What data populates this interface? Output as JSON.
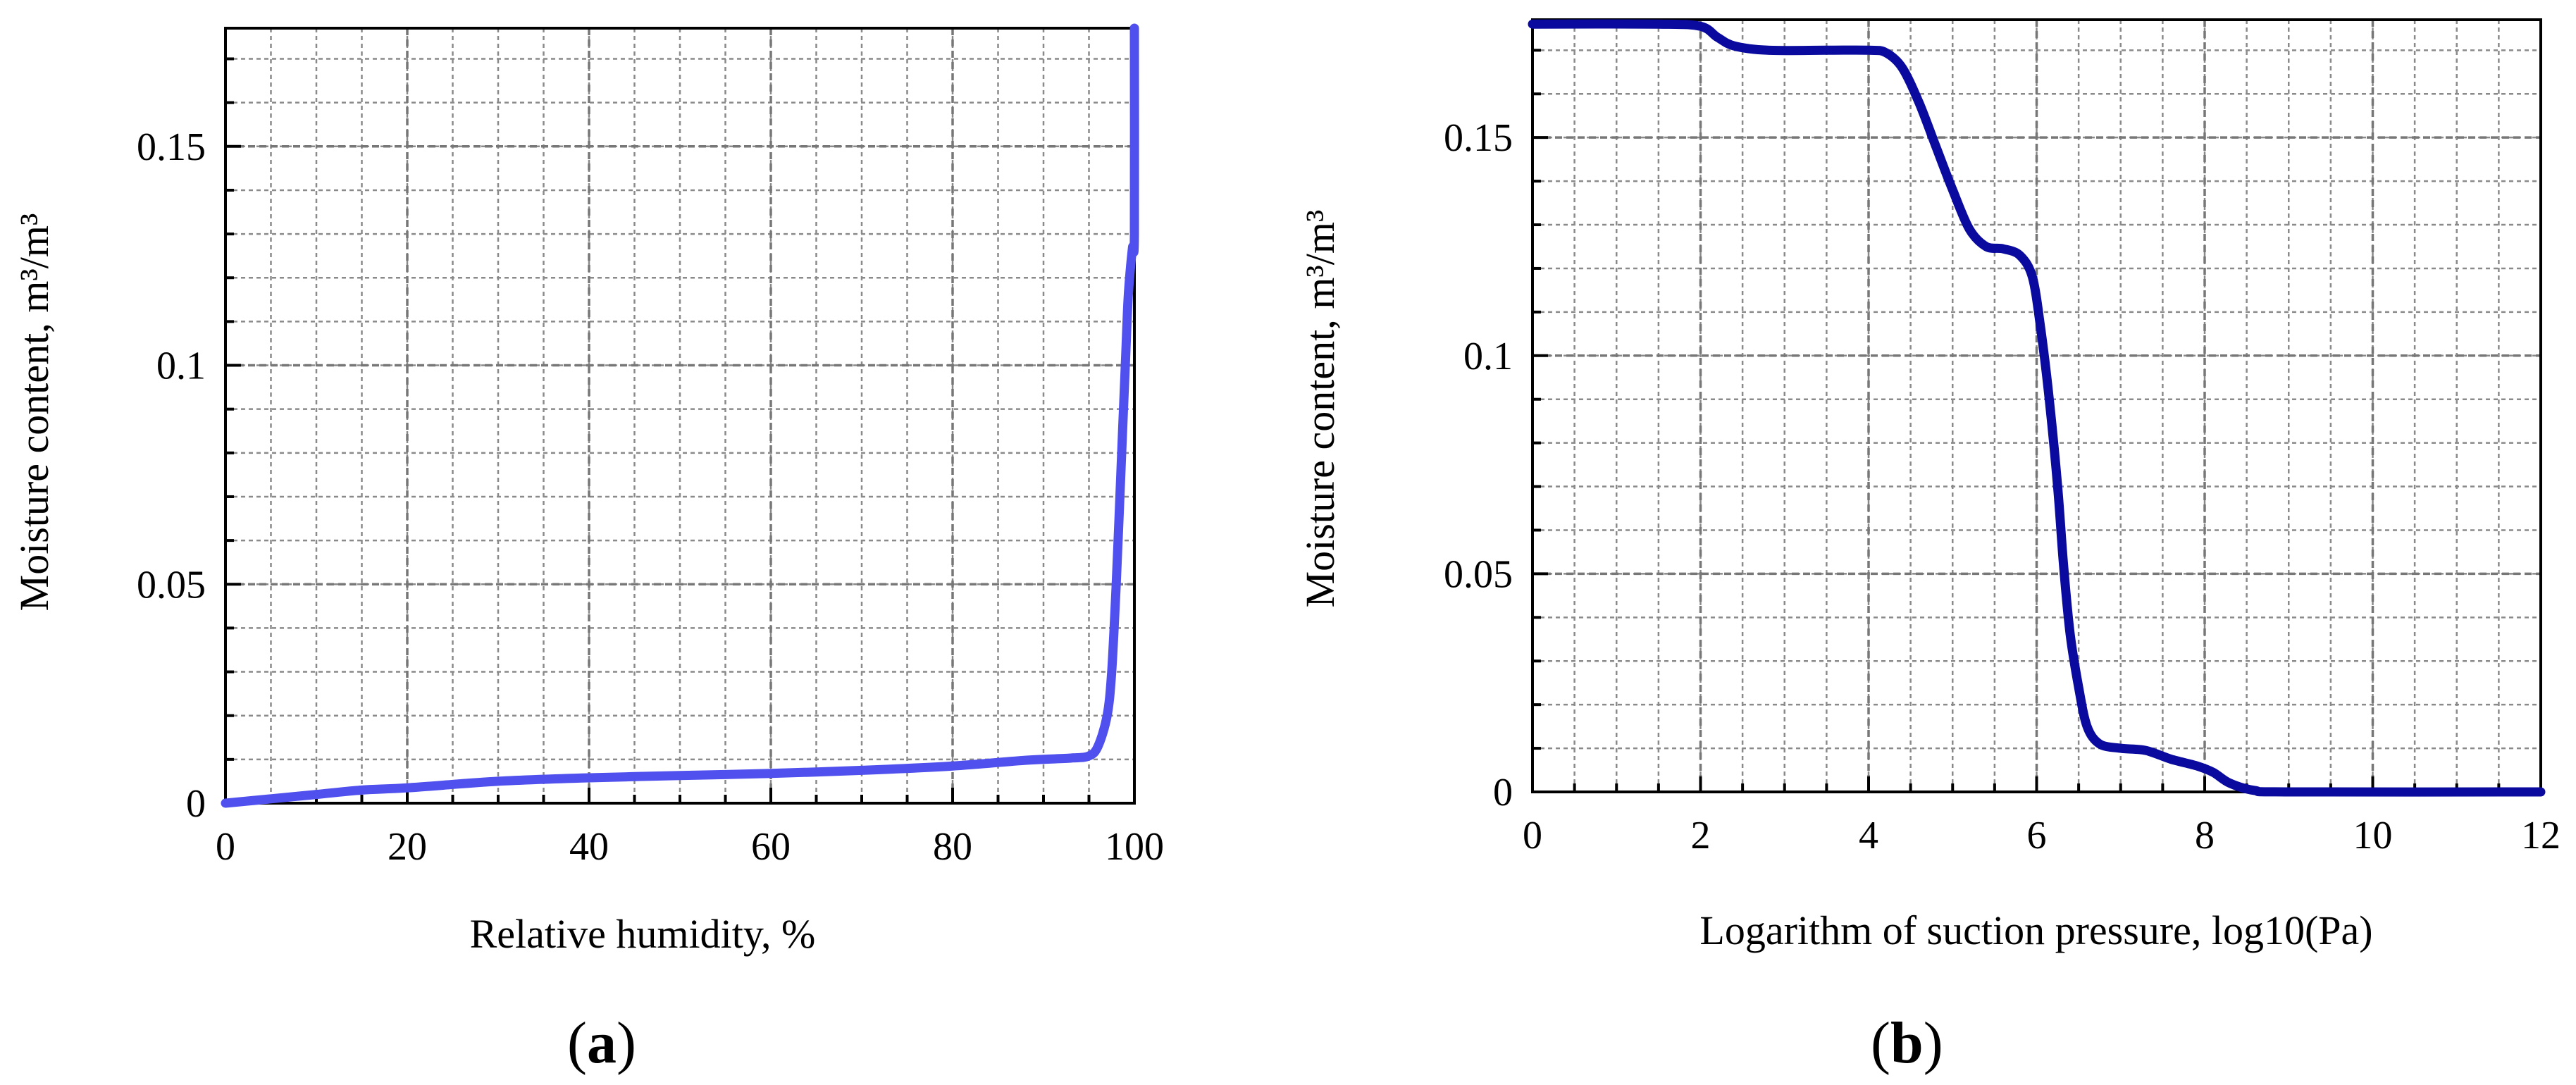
{
  "figure": {
    "colors": {
      "series_a": "#5050ee",
      "series_b": "#0a0a9e",
      "grid": "#8a8a8a",
      "axis": "#000000"
    }
  },
  "chart_data": [
    {
      "panel_label": "a",
      "type": "line",
      "xlabel": "Relative humidity, %",
      "ylabel": "Moisture content, m³/m³",
      "xlim": [
        0,
        100
      ],
      "ylim": [
        0,
        0.177
      ],
      "xticks": [
        0,
        20,
        40,
        60,
        80,
        100
      ],
      "yticks": [
        0,
        0.05,
        0.1,
        0.15
      ],
      "xtick_labels": [
        "0",
        "20",
        "40",
        "60",
        "80",
        "100"
      ],
      "ytick_labels": [
        "0",
        "0.05",
        "0.1",
        "0.15"
      ],
      "grid": true,
      "series": [
        {
          "color": "#5050ee",
          "x": [
            0,
            5,
            10,
            15,
            20,
            30,
            40,
            50,
            60,
            70,
            80,
            88,
            93,
            95,
            96,
            97,
            97.5,
            98,
            98.5,
            99,
            99.3,
            99.6,
            99.8,
            100,
            100
          ],
          "y": [
            0,
            0.001,
            0.002,
            0.003,
            0.0035,
            0.005,
            0.0058,
            0.0063,
            0.0068,
            0.0075,
            0.0085,
            0.0098,
            0.0103,
            0.0108,
            0.013,
            0.02,
            0.03,
            0.05,
            0.075,
            0.1,
            0.115,
            0.123,
            0.127,
            0.13,
            0.177
          ]
        }
      ]
    },
    {
      "panel_label": "b",
      "type": "line",
      "xlabel": "Logarithm of suction pressure, log10(Pa)",
      "ylabel": "Moisture content, m³/m³",
      "xlim": [
        0,
        12
      ],
      "ylim": [
        0,
        0.177
      ],
      "xticks": [
        0,
        2,
        4,
        6,
        8,
        10,
        12
      ],
      "yticks": [
        0,
        0.05,
        0.1,
        0.15
      ],
      "xtick_labels": [
        "0",
        "2",
        "4",
        "6",
        "8",
        "10",
        "12"
      ],
      "ytick_labels": [
        "0",
        "0.05",
        "0.1",
        "0.15"
      ],
      "grid": true,
      "series": [
        {
          "color": "#0a0a9e",
          "x": [
            0,
            1.5,
            2.0,
            2.2,
            2.4,
            2.8,
            3.5,
            4.0,
            4.2,
            4.4,
            4.6,
            4.8,
            5.0,
            5.2,
            5.4,
            5.6,
            5.8,
            5.95,
            6.05,
            6.15,
            6.25,
            6.32,
            6.4,
            6.5,
            6.6,
            6.75,
            7.0,
            7.3,
            7.6,
            7.9,
            8.1,
            8.3,
            8.6,
            9.0,
            12
          ],
          "y": [
            0.176,
            0.176,
            0.1755,
            0.173,
            0.171,
            0.17,
            0.17,
            0.17,
            0.1695,
            0.166,
            0.158,
            0.148,
            0.138,
            0.129,
            0.125,
            0.1245,
            0.123,
            0.118,
            0.106,
            0.09,
            0.07,
            0.052,
            0.036,
            0.024,
            0.015,
            0.011,
            0.01,
            0.0095,
            0.0075,
            0.006,
            0.0045,
            0.002,
            0.0003,
            0.0,
            0.0
          ]
        }
      ]
    }
  ]
}
